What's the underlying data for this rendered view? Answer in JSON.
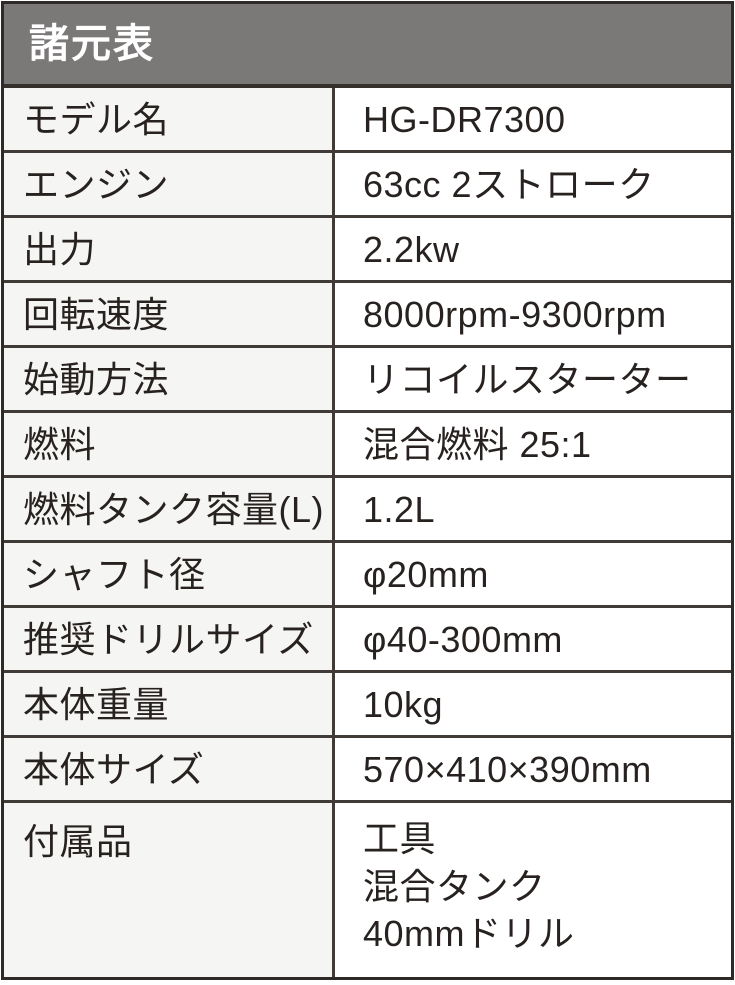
{
  "header": {
    "title": "諸元表"
  },
  "table": {
    "rows": [
      {
        "label": "モデル名",
        "value": "HG-DR7300"
      },
      {
        "label": "エンジン",
        "value": "63cc 2ストローク"
      },
      {
        "label": "出力",
        "value": "2.2kw"
      },
      {
        "label": "回転速度",
        "value": "8000rpm-9300rpm"
      },
      {
        "label": "始動方法",
        "value": "リコイルスターター"
      },
      {
        "label": "燃料",
        "value": "混合燃料 25:1"
      },
      {
        "label": "燃料タンク容量(L)",
        "value": "1.2L"
      },
      {
        "label": "シャフト径",
        "value": "φ20mm"
      },
      {
        "label": "推奨ドリルサイズ",
        "value": "φ40-300mm"
      },
      {
        "label": "本体重量",
        "value": "10kg"
      },
      {
        "label": "本体サイズ",
        "value": "570×410×390mm"
      },
      {
        "label": "付属品",
        "value_lines": [
          "工具",
          "混合タンク",
          "40mmドリル"
        ]
      }
    ]
  },
  "colors": {
    "header_bg": "#7b7878",
    "header_text": "#ffffff",
    "label_cell_bg": "#f5f5f3",
    "value_cell_bg": "#ffffff",
    "grid_line": "#413b37",
    "outer_border": "#2f2a28",
    "body_text": "#272220"
  }
}
